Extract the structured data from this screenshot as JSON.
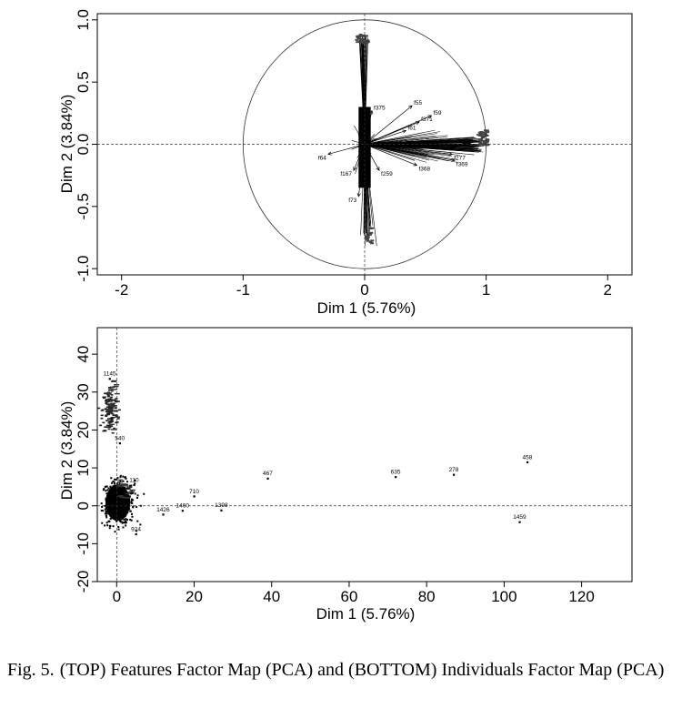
{
  "chart_data": [
    {
      "type": "scatter",
      "subtype": "pca-variables-factor-map",
      "title": "",
      "xlabel": "Dim 1 (5.76%)",
      "ylabel": "Dim 2 (3.84%)",
      "xlim": [
        -2.2,
        2.2
      ],
      "ylim": [
        -1.05,
        1.05
      ],
      "xticks": [
        -2,
        -1,
        0,
        1,
        2
      ],
      "yticks": [
        -1.0,
        -0.5,
        0.0,
        0.5,
        1.0
      ],
      "ytick_labels": [
        "-1.0",
        "-0.5",
        "0.0",
        "0.5",
        "1.0"
      ],
      "unit_circle": true,
      "reference_lines": "dashed at x=0 and y=0",
      "grid": false,
      "arrows": [
        {
          "label": "f55",
          "x": 0.39,
          "y": 0.31
        },
        {
          "label": "f59",
          "x": 0.55,
          "y": 0.23
        },
        {
          "label": "f371",
          "x": 0.45,
          "y": 0.18
        },
        {
          "label": "f61",
          "x": 0.34,
          "y": 0.11
        },
        {
          "label": "f64",
          "x": -0.3,
          "y": -0.08
        },
        {
          "label": "f259",
          "x": 0.12,
          "y": -0.21
        },
        {
          "label": "f368",
          "x": 0.43,
          "y": -0.17
        },
        {
          "label": "f369",
          "x": 0.74,
          "y": -0.13
        },
        {
          "label": "f277",
          "x": 0.72,
          "y": -0.08
        },
        {
          "label": "f375",
          "x": 0.06,
          "y": 0.27
        },
        {
          "label": "f167",
          "x": -0.09,
          "y": -0.21
        },
        {
          "label": "f73",
          "x": -0.05,
          "y": -0.42
        }
      ],
      "note": "Several hundred feature arrows overlap near the origin; dense bundles point up to about (0, 0.87), down to about (0.05, -0.8) and right to about (1.0, 0.03)."
    },
    {
      "type": "scatter",
      "subtype": "pca-individuals-factor-map",
      "title": "",
      "xlabel": "Dim 1 (5.76%)",
      "ylabel": "Dim 2 (3.84%)",
      "xlim": [
        -5,
        133
      ],
      "ylim": [
        -20,
        47
      ],
      "xticks": [
        0,
        20,
        40,
        60,
        80,
        100,
        120
      ],
      "yticks": [
        -20,
        -10,
        0,
        10,
        20,
        30,
        40
      ],
      "reference_lines": "dashed at x=0 and y=0",
      "grid": false,
      "points": [
        {
          "label": "458",
          "x": 106,
          "y": 11.5
        },
        {
          "label": "278",
          "x": 87,
          "y": 8.2
        },
        {
          "label": "635",
          "x": 72,
          "y": 7.6
        },
        {
          "label": "467",
          "x": 39,
          "y": 7.2
        },
        {
          "label": "710",
          "x": 20,
          "y": 2.5
        },
        {
          "label": "1398",
          "x": 27,
          "y": -1.2
        },
        {
          "label": "1460",
          "x": 17,
          "y": -1.3
        },
        {
          "label": "1426",
          "x": 12,
          "y": -2.3
        },
        {
          "label": "1459",
          "x": 104,
          "y": -4.3
        },
        {
          "label": "540",
          "x": 0.8,
          "y": 16.5
        },
        {
          "label": "110",
          "x": 4.5,
          "y": 5.5
        },
        {
          "label": "924",
          "x": 5,
          "y": -7.5
        },
        {
          "label": "1145",
          "x": -1.8,
          "y": 33.5
        }
      ],
      "note": "The vast majority of individuals form a dense black cluster around the origin (about x -3..7, y -6..7) plus a secondary cluster near x about -2, y 20..33."
    }
  ],
  "caption": {
    "figure_number": "Fig. 5.",
    "text": "(TOP) Features Factor Map (PCA) and (BOTTOM) Individuals Factor Map (PCA)"
  }
}
